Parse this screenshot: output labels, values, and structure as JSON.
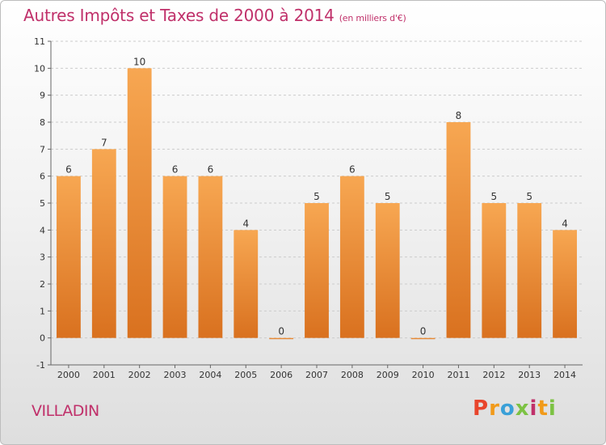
{
  "header": {
    "title": "Autres Impôts et Taxes de 2000 à 2014",
    "subtitle": "(en milliers d'€)"
  },
  "footer": {
    "commune": "VILLADIN",
    "logo_letters": [
      "P",
      "r",
      "o",
      "x",
      "i",
      "t",
      "i"
    ]
  },
  "colors": {
    "title": "#c0306a",
    "bar_top": "#f7a752",
    "bar_bottom": "#d9711f",
    "gridline": "#cccccc"
  },
  "chart_data": {
    "type": "bar",
    "title": "Autres Impôts et Taxes de 2000 à 2014",
    "subtitle": "(en milliers d'€)",
    "xlabel": "",
    "ylabel": "",
    "categories": [
      "2000",
      "2001",
      "2002",
      "2003",
      "2004",
      "2005",
      "2006",
      "2007",
      "2008",
      "2009",
      "2010",
      "2011",
      "2012",
      "2013",
      "2014"
    ],
    "values": [
      6,
      7,
      10,
      6,
      6,
      4,
      0,
      5,
      6,
      5,
      0,
      8,
      5,
      5,
      4
    ],
    "data_labels": [
      "6",
      "7",
      "10",
      "6",
      "6",
      "4",
      "0",
      "5",
      "6",
      "5",
      "0",
      "8",
      "5",
      "5",
      "4"
    ],
    "ylim": [
      -1,
      11
    ],
    "yticks": [
      -1,
      0,
      1,
      2,
      3,
      4,
      5,
      6,
      7,
      8,
      9,
      10,
      11
    ],
    "ytick_labels": [
      "-1",
      "0",
      "1",
      "2",
      "3",
      "4",
      "5",
      "6",
      "7",
      "8",
      "9",
      "10",
      "11"
    ],
    "grid": true,
    "legend": "none"
  }
}
